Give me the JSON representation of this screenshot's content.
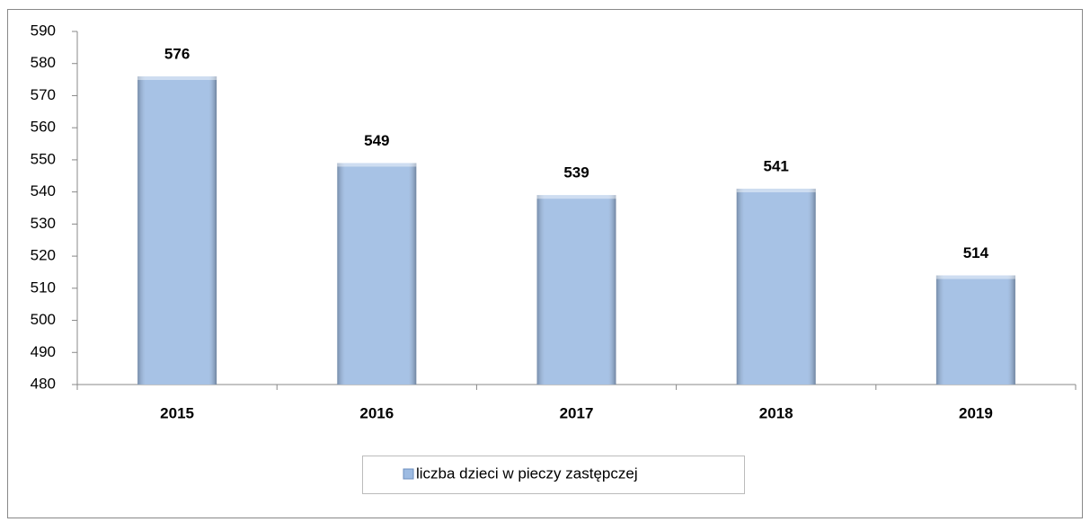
{
  "chart_data": {
    "type": "bar",
    "categories": [
      "2015",
      "2016",
      "2017",
      "2018",
      "2019"
    ],
    "series": [
      {
        "name": "liczba dzieci w pieczy zastępczej",
        "color": "#9dbbe2",
        "values": [
          576,
          549,
          539,
          541,
          514
        ]
      }
    ],
    "ylim": [
      480,
      590
    ],
    "yticks": [
      480,
      490,
      500,
      510,
      520,
      530,
      540,
      550,
      560,
      570,
      580,
      590
    ],
    "grid": false,
    "legend": "bottom"
  }
}
